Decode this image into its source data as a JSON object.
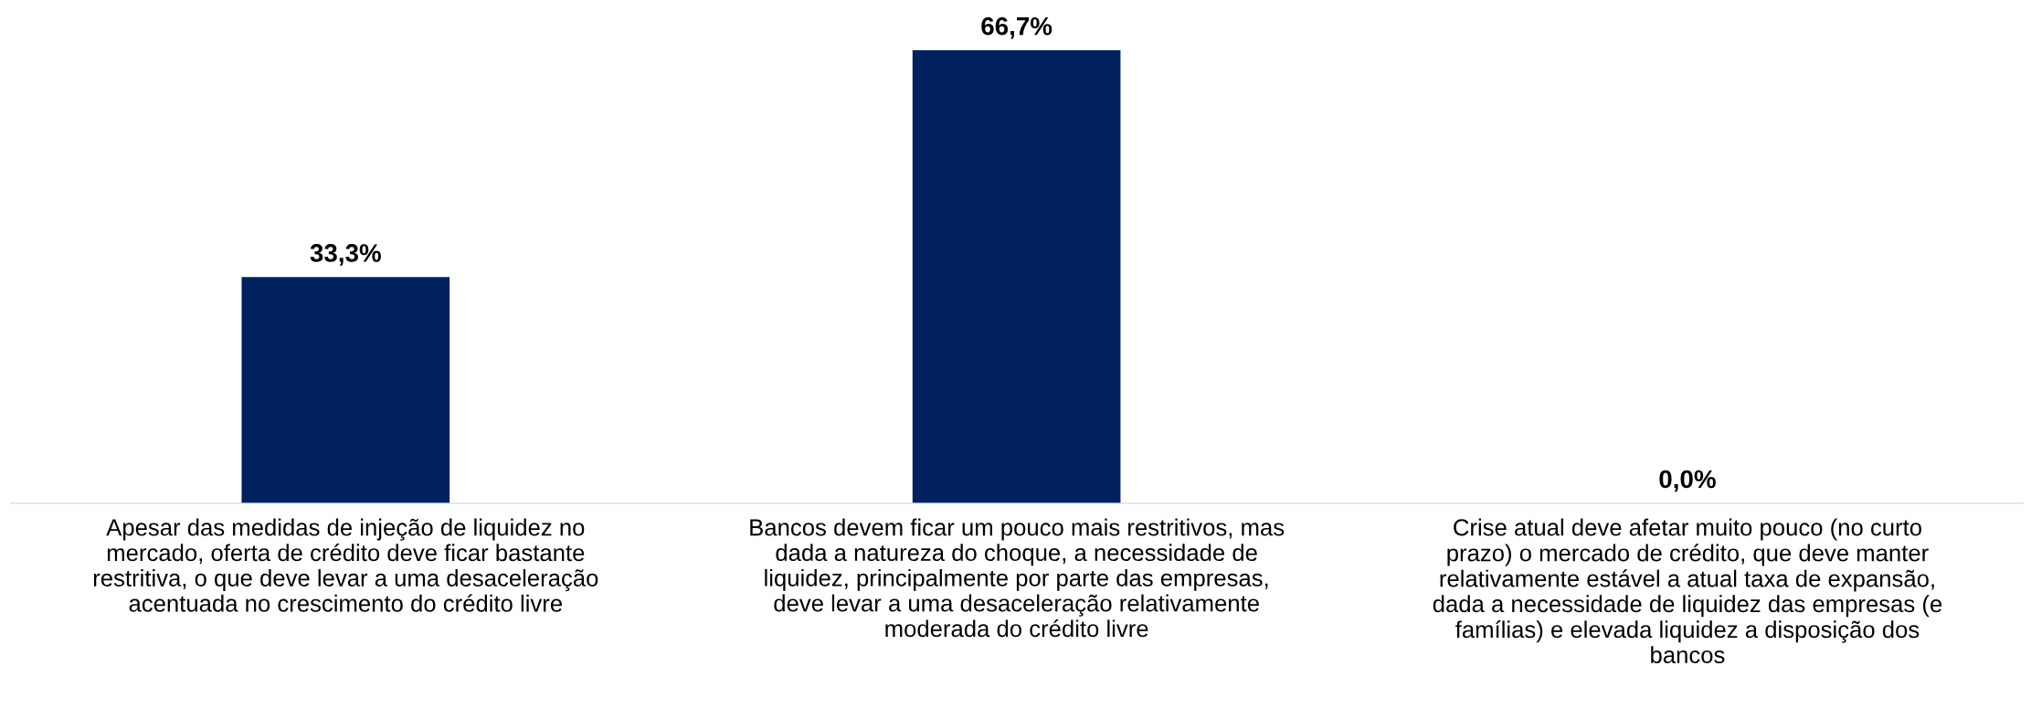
{
  "chart_data": {
    "type": "bar",
    "categories": [
      "Apesar das medidas de injeção de liquidez no\nmercado, oferta de crédito deve ficar bastante\nrestritiva, o que deve levar a uma desaceleração\nacentuada no crescimento do crédito livre",
      "Bancos devem ficar um pouco mais restritivos, mas\ndada a natureza do choque, a necessidade de\nliquidez, principalmente por parte das empresas,\ndeve levar a uma desaceleração relativamente\nmoderada do crédito livre",
      "Crise atual deve afetar muito pouco (no curto\nprazo) o mercado de crédito, que deve manter\nrelativamente estável a atual taxa de expansão,\ndada a necessidade de liquidez das empresas (e\nfamílias) e elevada liquidez a disposição dos\nbancos"
    ],
    "values": [
      33.3,
      66.7,
      0.0
    ],
    "value_labels": [
      "33,3%",
      "66,7%",
      "0,0%"
    ],
    "color": "#002060",
    "grid": false,
    "legend": false
  }
}
